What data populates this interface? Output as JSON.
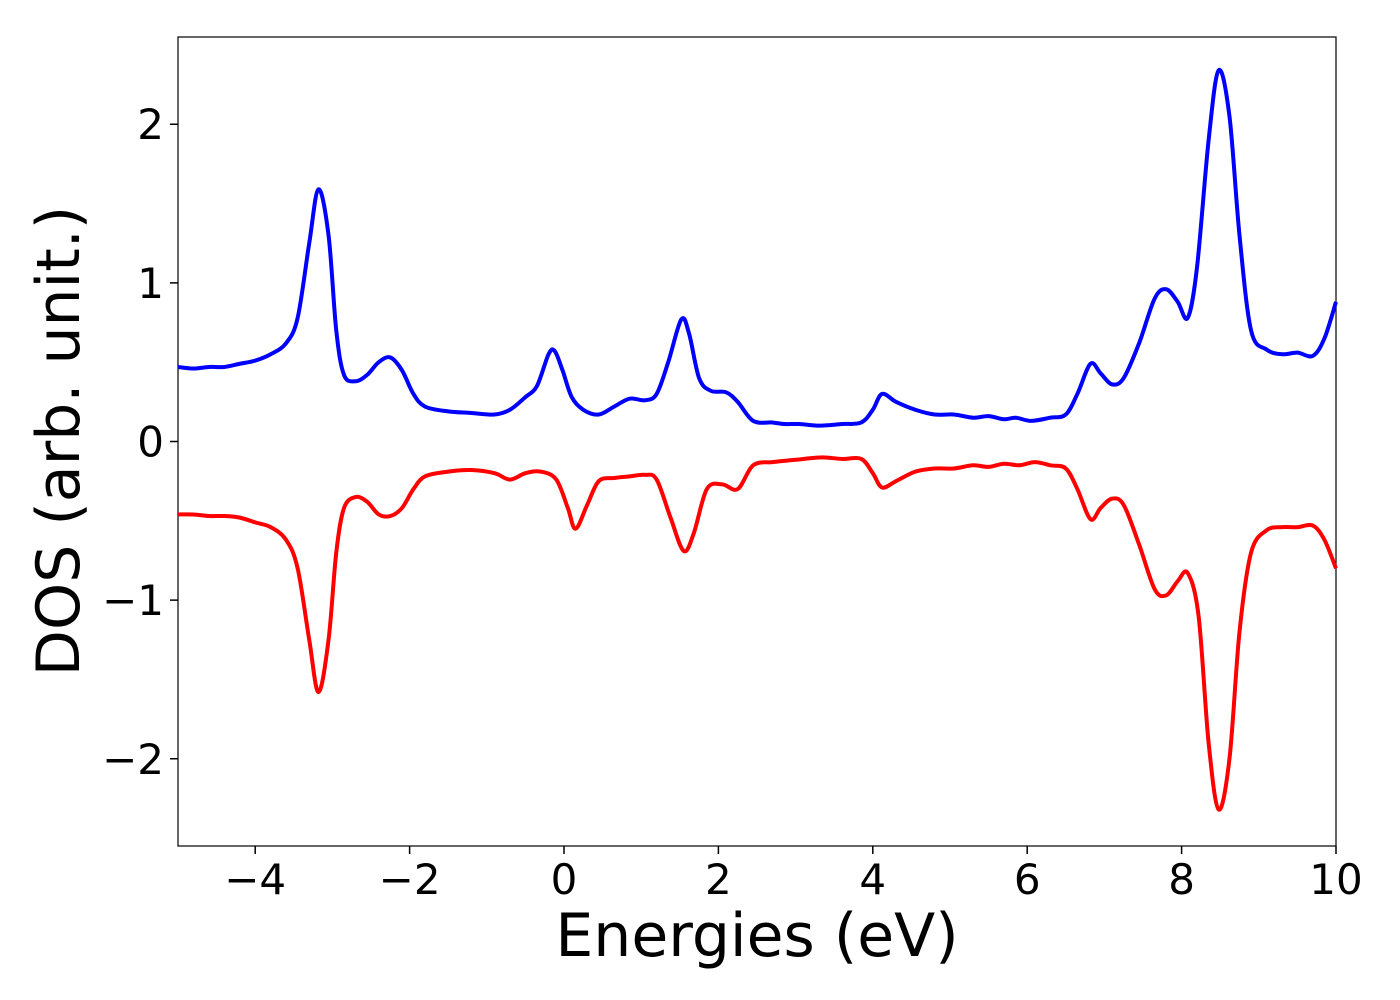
{
  "chart_data": {
    "type": "line",
    "title": "",
    "xlabel": "Energies (eV)",
    "ylabel": "DOS (arb. unit.)",
    "xlim": [
      -5,
      10
    ],
    "ylim": [
      -2.55,
      2.55
    ],
    "xticks": [
      -4,
      -2,
      0,
      2,
      4,
      6,
      8,
      10
    ],
    "xtick_labels": [
      "−4",
      "−2",
      "0",
      "2",
      "4",
      "6",
      "8",
      "10"
    ],
    "yticks": [
      -2,
      -1,
      0,
      1,
      2
    ],
    "ytick_labels": [
      "−2",
      "−1",
      "0",
      "1",
      "2"
    ],
    "grid": false,
    "series": [
      {
        "color": "#0000ff",
        "points": [
          [
            -5.0,
            0.47
          ],
          [
            -4.8,
            0.46
          ],
          [
            -4.6,
            0.47
          ],
          [
            -4.4,
            0.47
          ],
          [
            -4.2,
            0.49
          ],
          [
            -4.0,
            0.51
          ],
          [
            -3.8,
            0.55
          ],
          [
            -3.6,
            0.62
          ],
          [
            -3.45,
            0.78
          ],
          [
            -3.3,
            1.25
          ],
          [
            -3.18,
            1.59
          ],
          [
            -3.05,
            1.3
          ],
          [
            -2.95,
            0.7
          ],
          [
            -2.85,
            0.42
          ],
          [
            -2.7,
            0.38
          ],
          [
            -2.55,
            0.42
          ],
          [
            -2.4,
            0.5
          ],
          [
            -2.25,
            0.53
          ],
          [
            -2.1,
            0.45
          ],
          [
            -1.95,
            0.3
          ],
          [
            -1.8,
            0.22
          ],
          [
            -1.5,
            0.19
          ],
          [
            -1.2,
            0.18
          ],
          [
            -0.9,
            0.17
          ],
          [
            -0.7,
            0.2
          ],
          [
            -0.5,
            0.28
          ],
          [
            -0.35,
            0.35
          ],
          [
            -0.2,
            0.55
          ],
          [
            -0.12,
            0.57
          ],
          [
            -0.02,
            0.45
          ],
          [
            0.1,
            0.28
          ],
          [
            0.25,
            0.2
          ],
          [
            0.45,
            0.17
          ],
          [
            0.65,
            0.22
          ],
          [
            0.85,
            0.27
          ],
          [
            1.05,
            0.26
          ],
          [
            1.2,
            0.3
          ],
          [
            1.35,
            0.5
          ],
          [
            1.52,
            0.77
          ],
          [
            1.62,
            0.68
          ],
          [
            1.75,
            0.4
          ],
          [
            1.9,
            0.32
          ],
          [
            2.1,
            0.31
          ],
          [
            2.25,
            0.25
          ],
          [
            2.45,
            0.13
          ],
          [
            2.7,
            0.12
          ],
          [
            2.85,
            0.11
          ],
          [
            3.05,
            0.11
          ],
          [
            3.3,
            0.1
          ],
          [
            3.6,
            0.11
          ],
          [
            3.85,
            0.12
          ],
          [
            4.0,
            0.2
          ],
          [
            4.12,
            0.3
          ],
          [
            4.3,
            0.25
          ],
          [
            4.55,
            0.2
          ],
          [
            4.8,
            0.17
          ],
          [
            5.05,
            0.17
          ],
          [
            5.3,
            0.15
          ],
          [
            5.5,
            0.16
          ],
          [
            5.7,
            0.14
          ],
          [
            5.85,
            0.15
          ],
          [
            6.05,
            0.13
          ],
          [
            6.3,
            0.15
          ],
          [
            6.5,
            0.17
          ],
          [
            6.65,
            0.3
          ],
          [
            6.82,
            0.49
          ],
          [
            6.95,
            0.43
          ],
          [
            7.1,
            0.36
          ],
          [
            7.25,
            0.4
          ],
          [
            7.45,
            0.62
          ],
          [
            7.65,
            0.9
          ],
          [
            7.8,
            0.96
          ],
          [
            7.95,
            0.88
          ],
          [
            8.08,
            0.78
          ],
          [
            8.2,
            1.1
          ],
          [
            8.35,
            1.9
          ],
          [
            8.48,
            2.34
          ],
          [
            8.62,
            2.05
          ],
          [
            8.75,
            1.3
          ],
          [
            8.9,
            0.7
          ],
          [
            9.1,
            0.58
          ],
          [
            9.3,
            0.55
          ],
          [
            9.5,
            0.56
          ],
          [
            9.7,
            0.54
          ],
          [
            9.85,
            0.65
          ],
          [
            10.0,
            0.88
          ]
        ]
      },
      {
        "color": "#ff0000",
        "points": [
          [
            -5.0,
            -0.46
          ],
          [
            -4.8,
            -0.46
          ],
          [
            -4.6,
            -0.47
          ],
          [
            -4.4,
            -0.47
          ],
          [
            -4.2,
            -0.48
          ],
          [
            -4.0,
            -0.51
          ],
          [
            -3.8,
            -0.54
          ],
          [
            -3.6,
            -0.62
          ],
          [
            -3.45,
            -0.8
          ],
          [
            -3.3,
            -1.25
          ],
          [
            -3.18,
            -1.58
          ],
          [
            -3.05,
            -1.25
          ],
          [
            -2.95,
            -0.7
          ],
          [
            -2.85,
            -0.42
          ],
          [
            -2.7,
            -0.35
          ],
          [
            -2.55,
            -0.38
          ],
          [
            -2.4,
            -0.46
          ],
          [
            -2.25,
            -0.47
          ],
          [
            -2.1,
            -0.42
          ],
          [
            -1.95,
            -0.3
          ],
          [
            -1.8,
            -0.22
          ],
          [
            -1.5,
            -0.19
          ],
          [
            -1.2,
            -0.18
          ],
          [
            -0.9,
            -0.2
          ],
          [
            -0.7,
            -0.24
          ],
          [
            -0.5,
            -0.2
          ],
          [
            -0.3,
            -0.19
          ],
          [
            -0.1,
            -0.24
          ],
          [
            0.05,
            -0.42
          ],
          [
            0.15,
            -0.55
          ],
          [
            0.3,
            -0.4
          ],
          [
            0.45,
            -0.25
          ],
          [
            0.65,
            -0.23
          ],
          [
            0.85,
            -0.22
          ],
          [
            1.05,
            -0.21
          ],
          [
            1.2,
            -0.24
          ],
          [
            1.38,
            -0.48
          ],
          [
            1.55,
            -0.69
          ],
          [
            1.68,
            -0.58
          ],
          [
            1.85,
            -0.3
          ],
          [
            2.05,
            -0.27
          ],
          [
            2.25,
            -0.3
          ],
          [
            2.45,
            -0.15
          ],
          [
            2.7,
            -0.13
          ],
          [
            2.9,
            -0.12
          ],
          [
            3.1,
            -0.11
          ],
          [
            3.35,
            -0.1
          ],
          [
            3.6,
            -0.11
          ],
          [
            3.85,
            -0.11
          ],
          [
            4.0,
            -0.2
          ],
          [
            4.12,
            -0.29
          ],
          [
            4.3,
            -0.25
          ],
          [
            4.55,
            -0.19
          ],
          [
            4.8,
            -0.17
          ],
          [
            5.05,
            -0.17
          ],
          [
            5.3,
            -0.15
          ],
          [
            5.5,
            -0.16
          ],
          [
            5.7,
            -0.14
          ],
          [
            5.9,
            -0.15
          ],
          [
            6.1,
            -0.13
          ],
          [
            6.3,
            -0.15
          ],
          [
            6.5,
            -0.17
          ],
          [
            6.65,
            -0.3
          ],
          [
            6.82,
            -0.49
          ],
          [
            6.95,
            -0.42
          ],
          [
            7.1,
            -0.36
          ],
          [
            7.25,
            -0.4
          ],
          [
            7.45,
            -0.65
          ],
          [
            7.65,
            -0.93
          ],
          [
            7.8,
            -0.97
          ],
          [
            7.95,
            -0.88
          ],
          [
            8.08,
            -0.83
          ],
          [
            8.22,
            -1.1
          ],
          [
            8.35,
            -1.9
          ],
          [
            8.48,
            -2.32
          ],
          [
            8.62,
            -2.0
          ],
          [
            8.75,
            -1.2
          ],
          [
            8.9,
            -0.7
          ],
          [
            9.1,
            -0.56
          ],
          [
            9.3,
            -0.54
          ],
          [
            9.5,
            -0.54
          ],
          [
            9.7,
            -0.53
          ],
          [
            9.85,
            -0.62
          ],
          [
            10.0,
            -0.8
          ]
        ]
      }
    ]
  }
}
